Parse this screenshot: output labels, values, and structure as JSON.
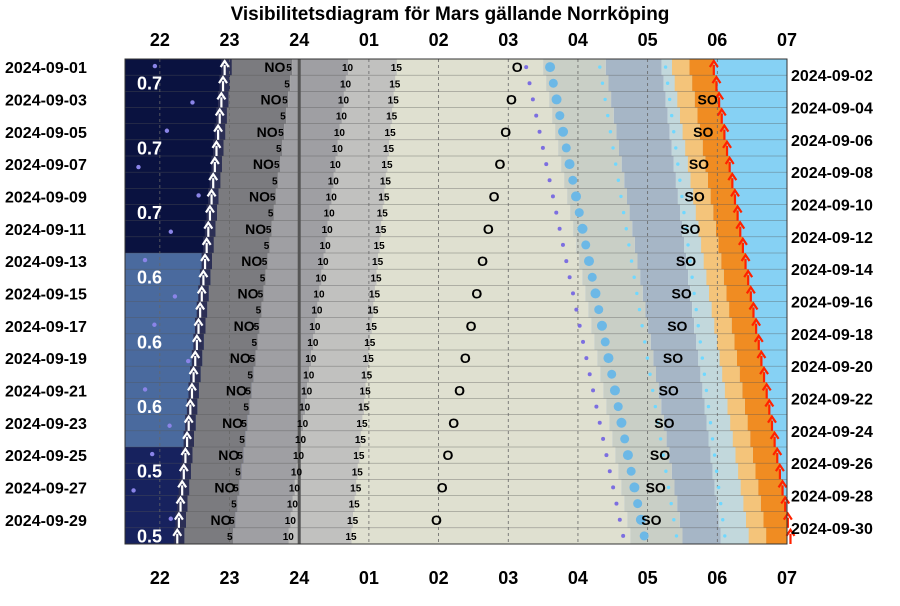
{
  "title": "Visibilitetsdiagram för Mars gällande Norrköping",
  "chart_data": {
    "type": "area",
    "hour_ticks": [
      "22",
      "23",
      "24",
      "01",
      "02",
      "03",
      "04",
      "05",
      "06",
      "07"
    ],
    "dates_left": [
      "2024-09-01",
      "2024-09-03",
      "2024-09-05",
      "2024-09-07",
      "2024-09-09",
      "2024-09-11",
      "2024-09-13",
      "2024-09-15",
      "2024-09-17",
      "2024-09-19",
      "2024-09-21",
      "2024-09-23",
      "2024-09-25",
      "2024-09-27",
      "2024-09-29"
    ],
    "dates_right": [
      "2024-09-02",
      "2024-09-04",
      "2024-09-06",
      "2024-09-08",
      "2024-09-10",
      "2024-09-12",
      "2024-09-14",
      "2024-09-16",
      "2024-09-18",
      "2024-09-20",
      "2024-09-22",
      "2024-09-24",
      "2024-09-26",
      "2024-09-28",
      "2024-09-30"
    ],
    "magnitude_labels": [
      {
        "day": 2,
        "text": "0.7"
      },
      {
        "day": 6,
        "text": "0.7"
      },
      {
        "day": 10,
        "text": "0.7"
      },
      {
        "day": 14,
        "text": "0.6"
      },
      {
        "day": 18,
        "text": "0.6"
      },
      {
        "day": 22,
        "text": "0.6"
      },
      {
        "day": 26,
        "text": "0.5"
      },
      {
        "day": 30,
        "text": "0.5"
      }
    ],
    "altitude_labels": [
      "5",
      "10",
      "15"
    ],
    "direction_labels": {
      "rise_side": "NO",
      "south": "O",
      "set_side": "SO"
    },
    "series": {
      "mars_rise": [
        22.93,
        22.25
      ],
      "alt5": [
        23.9,
        23.05
      ],
      "alt10": [
        24.7,
        23.85
      ],
      "alt15": [
        25.4,
        24.75
      ],
      "az_NO": [
        23.5,
        22.7
      ],
      "az_O": [
        27.05,
        25.85
      ],
      "twilight_astro_end": [
        27.5,
        28.75
      ],
      "twilight_naut_end": [
        28.4,
        29.5
      ],
      "twilight_civil_end": [
        29.2,
        30.05
      ],
      "az_SO": [
        29.95,
        29.05
      ],
      "sunrise": [
        29.95,
        31.05
      ],
      "moon_track": [
        27.6,
        28.95
      ]
    },
    "colors": {
      "night": "#0a1240",
      "astro_twilight": "#4a6a9e",
      "naut_twilight": "#a6b6c6",
      "civil_twilight": "#dfe0d0",
      "day": "#86d1f4",
      "sunrise_glow": "#f08c22",
      "mars_below_horizon": "#7b7b7f",
      "mars_low": "#9f9fa3",
      "mars_mid": "#c1c1bf",
      "arrow_rise": "#ffffff",
      "arrow_sun": "#ff2200"
    }
  }
}
